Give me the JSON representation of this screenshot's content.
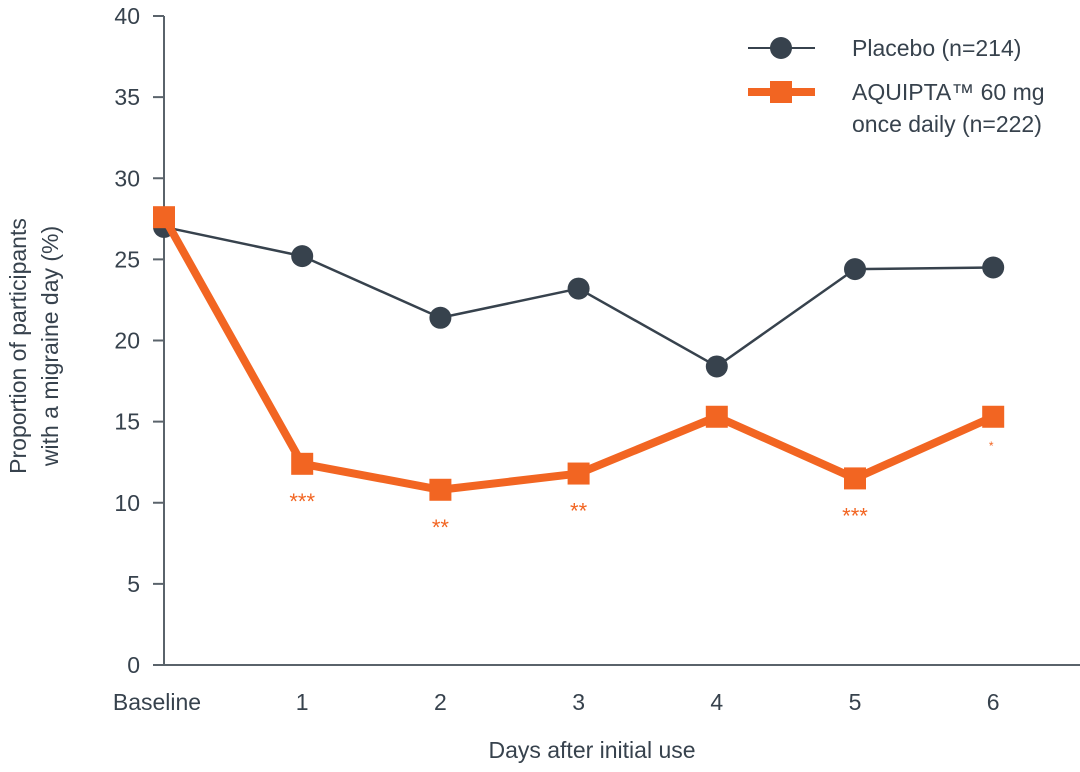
{
  "chart_data": {
    "type": "line",
    "categories": [
      "Baseline",
      "1",
      "2",
      "3",
      "4",
      "5",
      "6"
    ],
    "xlabel": "Days after initial use",
    "ylabel_lines": [
      "Proportion of participants",
      "with a migraine day (%)"
    ],
    "ylim": [
      0,
      40
    ],
    "yticks": [
      0,
      5,
      10,
      15,
      20,
      25,
      30,
      35,
      40
    ],
    "grid": false,
    "legend_position": "top-right",
    "series": [
      {
        "name": "Placebo (n=214)",
        "legend_lines": [
          "Placebo (n=214)"
        ],
        "color": "#37424d",
        "marker": "circle",
        "values": [
          27.0,
          25.2,
          21.4,
          23.2,
          18.4,
          24.4,
          24.5
        ]
      },
      {
        "name": "AQUIPTA™ 60 mg once daily (n=222)",
        "legend_lines": [
          "AQUIPTA™ 60 mg",
          "once daily (n=222)"
        ],
        "color": "#f26522",
        "marker": "square",
        "values": [
          27.6,
          12.4,
          10.8,
          11.8,
          15.3,
          11.5,
          15.3
        ],
        "annotations": [
          "",
          "***",
          "**",
          "**",
          "",
          "***",
          "*"
        ]
      }
    ]
  }
}
